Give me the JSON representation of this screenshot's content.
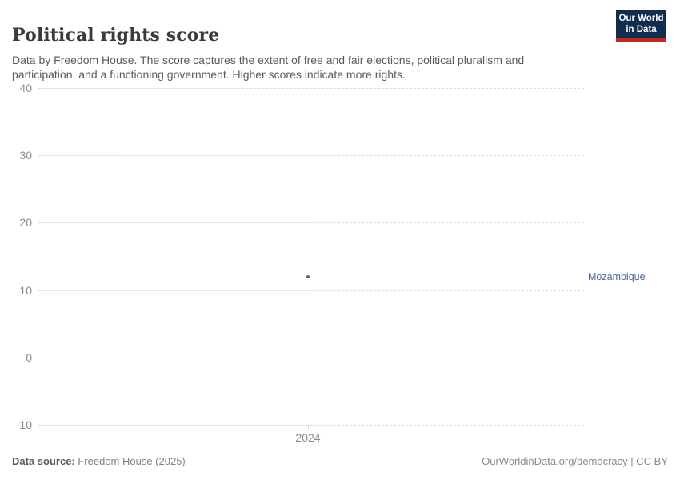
{
  "header": {
    "title": "Political rights score",
    "subtitle": "Data by Freedom House. The score captures the extent of free and fair elections, political pluralism and participation, and a functioning government. Higher scores indicate more rights.",
    "logo": {
      "line1": "Our World",
      "line2": "in Data"
    }
  },
  "chart_data": {
    "type": "scatter",
    "title": "Political rights score",
    "series": [
      {
        "name": "Mozambique",
        "x": [
          2024
        ],
        "values": [
          12
        ],
        "color": "#4c6a9c"
      }
    ],
    "xlabel": "",
    "ylabel": "",
    "ylim": [
      -10,
      40
    ],
    "yticks": [
      -10,
      0,
      10,
      20,
      30,
      40
    ],
    "xticks": [
      "2024"
    ],
    "grid": "horizontal-dashed",
    "zero_line": true,
    "legend_position": "right-entity-label"
  },
  "footer": {
    "source_label": "Data source:",
    "source_value": " Freedom House (2025)",
    "rights": "OurWorldinData.org/democracy | CC BY"
  },
  "colors": {
    "series_blue": "#4c6a9c",
    "logo_navy": "#102d50",
    "logo_red": "#c12921",
    "gridline": "#dcdcdc",
    "zero_line": "#a6a6a6",
    "tick_text": "#8a8a8a"
  }
}
